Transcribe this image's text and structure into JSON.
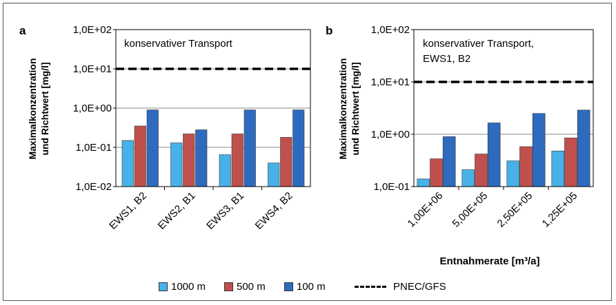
{
  "colors": {
    "s1000": "#48b1e8",
    "s500": "#c0504d",
    "s100": "#2e6bbf",
    "pnec": "#000000"
  },
  "legend": {
    "s1000": "1000 m",
    "s500": "500 m",
    "s100": "100 m",
    "pnec": "PNEC/GFS"
  },
  "chart_data": [
    {
      "type": "bar",
      "panel_letter": "a",
      "annotation": "konservativer Transport",
      "ylabel_line1": "Maximalkonzentration",
      "ylabel_line2": "und  Richtwert [mg/l]",
      "xlabel": "",
      "yscale": "log",
      "ylim": [
        0.01,
        100
      ],
      "yticks": [
        "1,0E-02",
        "1,0E-01",
        "1,0E+00",
        "1,0E+01",
        "1,0E+02"
      ],
      "categories": [
        "EWS1, B2",
        "EWS2, B1",
        "EWS3, B1",
        "EWS4, B2"
      ],
      "series": [
        {
          "name": "1000 m",
          "values": [
            0.15,
            0.13,
            0.065,
            0.04
          ]
        },
        {
          "name": "500 m",
          "values": [
            0.35,
            0.22,
            0.22,
            0.18
          ]
        },
        {
          "name": "100 m",
          "values": [
            0.9,
            0.28,
            0.9,
            0.9
          ]
        }
      ],
      "reference_line": {
        "name": "PNEC/GFS",
        "value": 10
      }
    },
    {
      "type": "bar",
      "panel_letter": "b",
      "annotation_line1": "konservativer Transport,",
      "annotation_line2": "EWS1, B2",
      "ylabel_line1": "Maximalkonzentration",
      "ylabel_line2": "und  Richtwert [mg/l]",
      "xlabel": "Entnahmerate [m³/a]",
      "yscale": "log",
      "ylim": [
        0.1,
        100
      ],
      "yticks": [
        "1,0E-01",
        "1,0E+00",
        "1,0E+01",
        "1,0E+02"
      ],
      "categories": [
        "1,00E+06",
        "5,00E+05",
        "2,50E+05",
        "1,25E+05"
      ],
      "series": [
        {
          "name": "1000 m",
          "values": [
            0.14,
            0.21,
            0.31,
            0.48
          ]
        },
        {
          "name": "500 m",
          "values": [
            0.34,
            0.42,
            0.58,
            0.85
          ]
        },
        {
          "name": "100 m",
          "values": [
            0.9,
            1.65,
            2.5,
            2.9
          ]
        }
      ],
      "reference_line": {
        "name": "PNEC/GFS",
        "value": 10
      }
    }
  ]
}
